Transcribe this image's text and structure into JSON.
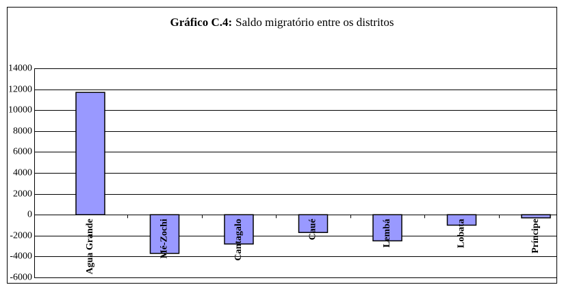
{
  "chart_data": {
    "type": "bar",
    "title_label": "Gráfico C.4:",
    "title": "Saldo migratório entre os distritos",
    "categories": [
      "Agua Grande",
      "Mé-Zochi",
      "Cantagalo",
      "Caué",
      "Lembá",
      "Lobata",
      "Príncipe"
    ],
    "values": [
      11700,
      -3700,
      -2800,
      -1700,
      -2500,
      -1000,
      -300
    ],
    "color": "#9999ff",
    "ylim": [
      -6000,
      14000
    ],
    "yticks": [
      -6000,
      -4000,
      -2000,
      0,
      2000,
      4000,
      6000,
      8000,
      10000,
      12000,
      14000
    ],
    "grid": true
  }
}
